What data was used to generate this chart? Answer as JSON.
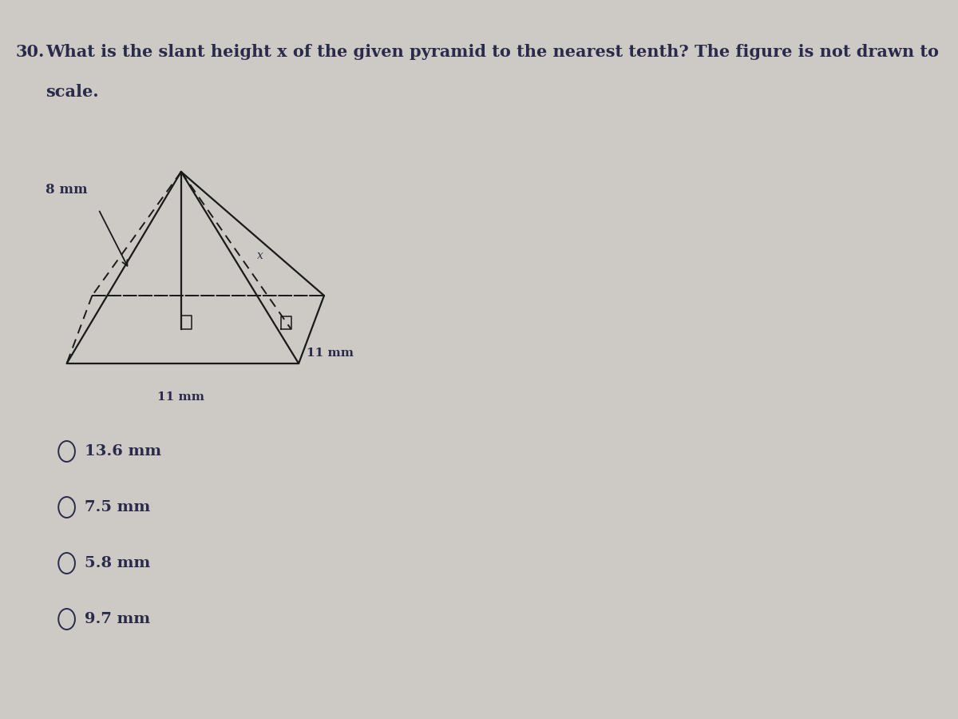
{
  "bg_color": "#cdc9c4",
  "question_number": "30.",
  "question_text": "What is the slant height x of the given pyramid to the nearest tenth? The figure is not drawn to",
  "question_text2": "scale.",
  "label_8mm": "8 mm",
  "label_11mm_bottom": "11 mm",
  "label_11mm_right": "11 mm",
  "label_x": "x",
  "options": [
    "13.6 mm",
    "7.5 mm",
    "5.8 mm",
    "9.7 mm"
  ],
  "line_color": "#1a1a1a",
  "font_color": "#1a1a2e",
  "text_color": "#2a2a4a"
}
